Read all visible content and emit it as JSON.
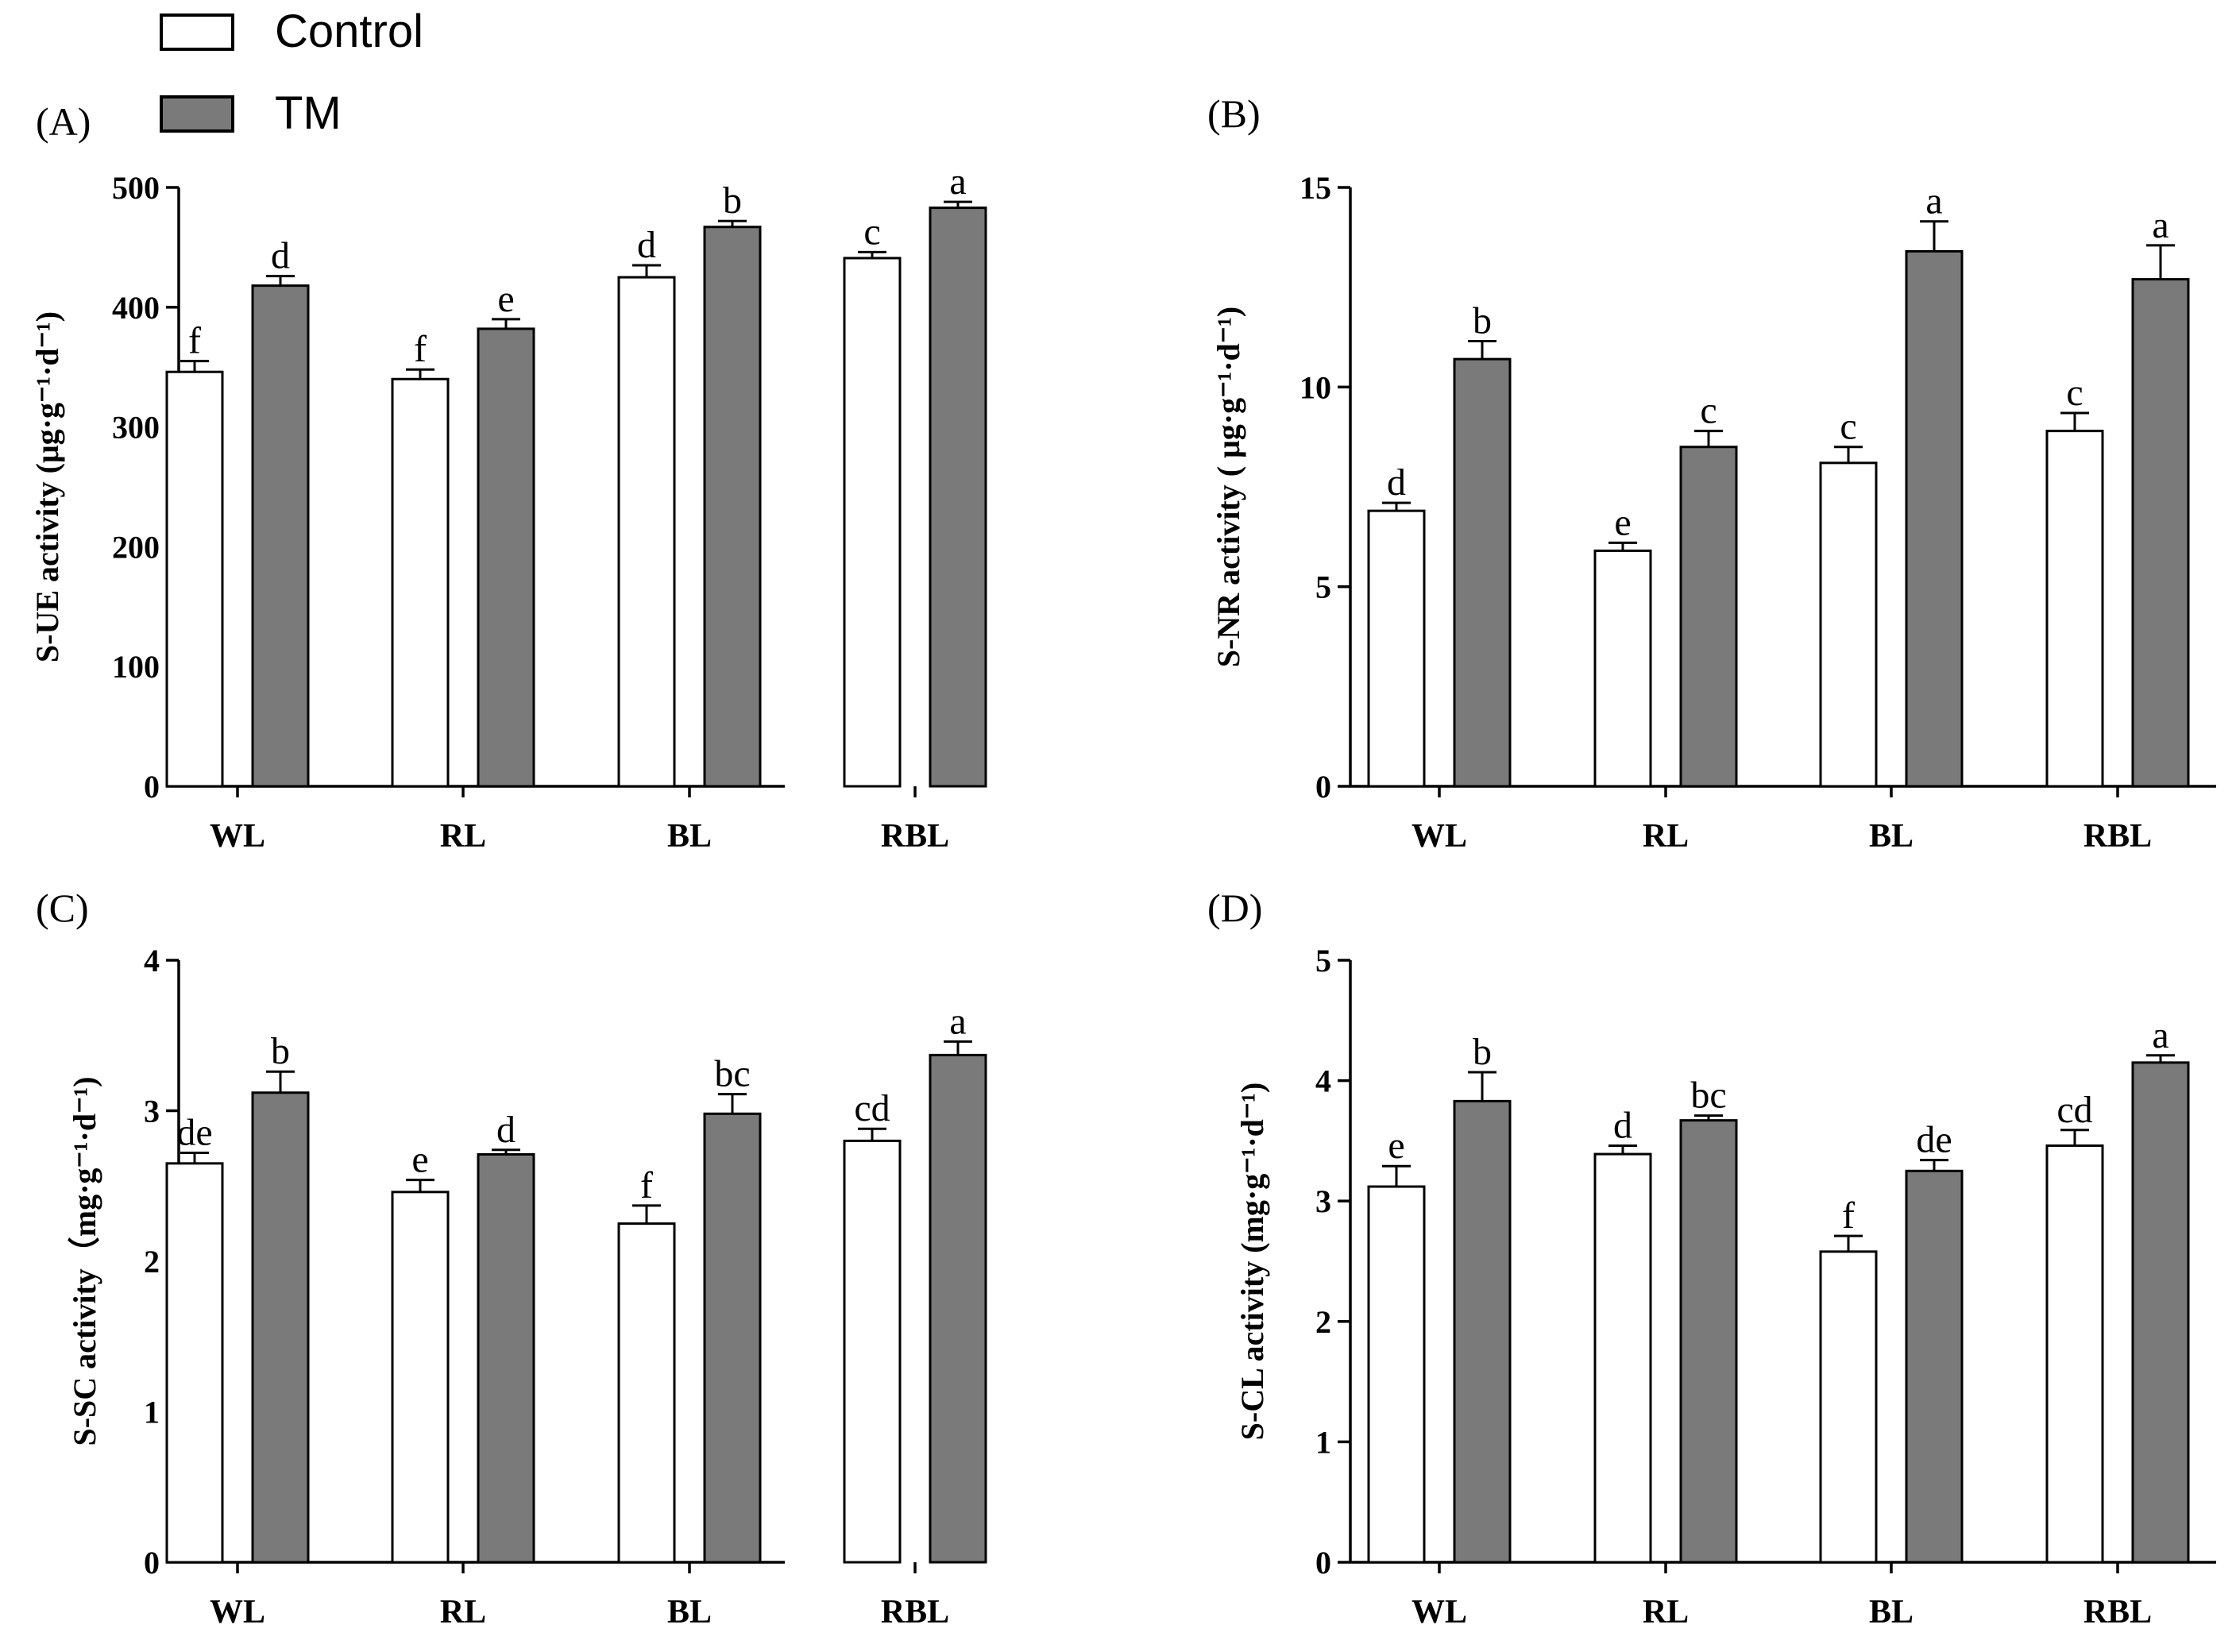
{
  "legend": {
    "entries": [
      {
        "name": "Control",
        "color": "#ffffff"
      },
      {
        "name": "TM",
        "color": "#7a7a7a"
      }
    ]
  },
  "chart_data": [
    {
      "type": "bar",
      "panel": "(A)",
      "categories": [
        "WL",
        "RL",
        "BL",
        "RBL"
      ],
      "ylabel": "S-UE activity (μg·g⁻¹·d⁻¹)",
      "ylim": [
        0,
        500
      ],
      "yticks": [
        0,
        100,
        200,
        300,
        400,
        500
      ],
      "series": [
        {
          "name": "Control",
          "values": [
            346,
            340,
            425,
            441
          ],
          "errors": [
            9,
            8,
            10,
            5
          ],
          "letters": [
            "f",
            "f",
            "d",
            "c"
          ]
        },
        {
          "name": "TM",
          "values": [
            418,
            382,
            467,
            483
          ],
          "errors": [
            8,
            8,
            5,
            5
          ],
          "letters": [
            "d",
            "e",
            "b",
            "a"
          ]
        }
      ]
    },
    {
      "type": "bar",
      "panel": "(B)",
      "categories": [
        "WL",
        "RL",
        "BL",
        "RBL"
      ],
      "ylabel": "S-NR activity ( μg·g⁻¹·d⁻¹)",
      "ylim": [
        0,
        15
      ],
      "yticks": [
        0,
        5,
        10,
        15
      ],
      "series": [
        {
          "name": "Control",
          "values": [
            6.9,
            5.9,
            8.1,
            8.9
          ],
          "errors": [
            0.2,
            0.2,
            0.4,
            0.45
          ],
          "letters": [
            "d",
            "e",
            "c",
            "c"
          ]
        },
        {
          "name": "TM",
          "values": [
            10.7,
            8.5,
            13.4,
            12.7
          ],
          "errors": [
            0.45,
            0.4,
            0.75,
            0.85
          ],
          "letters": [
            "b",
            "c",
            "a",
            "a"
          ]
        }
      ]
    },
    {
      "type": "bar",
      "panel": "(C)",
      "categories": [
        "WL",
        "RL",
        "BL",
        "RBL"
      ],
      "ylabel": "S-SC activity（mg·g⁻¹·d⁻¹)",
      "ylim": [
        0,
        4
      ],
      "yticks": [
        0,
        1,
        2,
        3,
        4
      ],
      "series": [
        {
          "name": "Control",
          "values": [
            2.65,
            2.46,
            2.25,
            2.8
          ],
          "errors": [
            0.07,
            0.08,
            0.12,
            0.08
          ],
          "letters": [
            "de",
            "e",
            "f",
            "cd"
          ]
        },
        {
          "name": "TM",
          "values": [
            3.12,
            2.71,
            2.98,
            3.37
          ],
          "errors": [
            0.14,
            0.03,
            0.13,
            0.09
          ],
          "letters": [
            "b",
            "d",
            "bc",
            "a"
          ]
        }
      ]
    },
    {
      "type": "bar",
      "panel": "(D)",
      "categories": [
        "WL",
        "RL",
        "BL",
        "RBL"
      ],
      "ylabel": "S-CL activity (mg·g⁻¹·d⁻¹)",
      "ylim": [
        0,
        5
      ],
      "yticks": [
        0,
        1,
        2,
        3,
        4,
        5
      ],
      "series": [
        {
          "name": "Control",
          "values": [
            3.12,
            3.39,
            2.58,
            3.46
          ],
          "errors": [
            0.17,
            0.07,
            0.13,
            0.13
          ],
          "letters": [
            "e",
            "d",
            "f",
            "cd"
          ]
        },
        {
          "name": "TM",
          "values": [
            3.83,
            3.67,
            3.25,
            4.15
          ],
          "errors": [
            0.24,
            0.04,
            0.09,
            0.06
          ],
          "letters": [
            "b",
            "bc",
            "de",
            "a"
          ]
        }
      ]
    }
  ]
}
